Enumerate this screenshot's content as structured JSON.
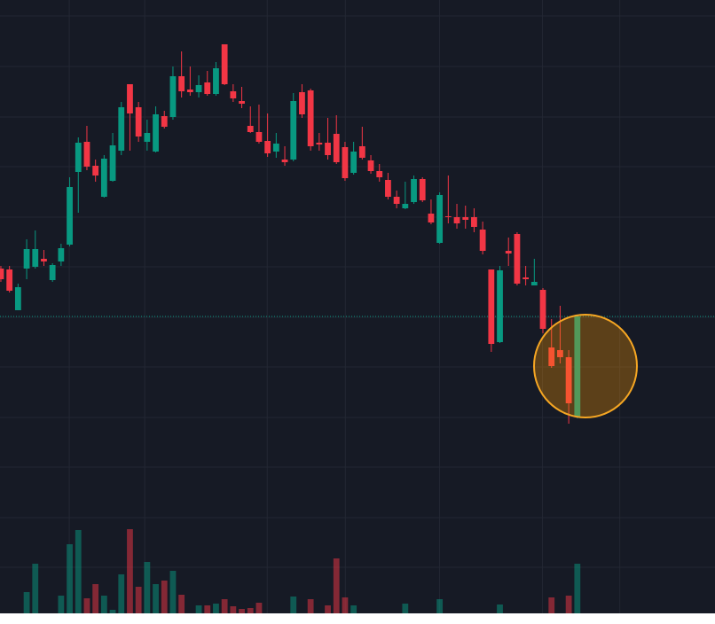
{
  "chart_data": {
    "type": "candlestick",
    "up_color": "#089981",
    "down_color": "#f23645",
    "ylim": [
      0,
      704
    ],
    "yticks": [
      686,
      629,
      572,
      516,
      459,
      403,
      346,
      290,
      233,
      177,
      120,
      64
    ],
    "xlim": [
      -0.1,
      83
    ],
    "xticks": [
      7.95,
      16.72,
      30.96,
      40.04,
      50.98,
      62.95,
      71.93
    ],
    "grid": true,
    "volume_ylim": [
      0,
      692
    ],
    "open": [
      401,
      400,
      354,
      401,
      403,
      412,
      388,
      409,
      428,
      510,
      544,
      517,
      482,
      500,
      534,
      609,
      583,
      544,
      533,
      573,
      572,
      618,
      603,
      600,
      611,
      598,
      654,
      601,
      590,
      562,
      555,
      545,
      533,
      524,
      524,
      600,
      602,
      543,
      543,
      553,
      538,
      509,
      539,
      523,
      511,
      501,
      482,
      469,
      476,
      502,
      463,
      430,
      460,
      459,
      459,
      459,
      445,
      400,
      318,
      421,
      440,
      391,
      382,
      377,
      312,
      309,
      301,
      234
    ],
    "high": [
      404,
      404,
      384,
      434,
      444,
      422,
      407,
      429,
      504,
      549,
      562,
      524,
      529,
      554,
      589,
      609,
      589,
      569,
      584,
      579,
      629,
      646,
      629,
      619,
      624,
      634,
      654,
      609,
      606,
      584,
      586,
      576,
      554,
      539,
      599,
      609,
      604,
      554,
      571,
      574,
      544,
      544,
      561,
      529,
      519,
      509,
      489,
      499,
      506,
      504,
      479,
      487,
      506,
      474,
      472,
      469,
      454,
      400,
      404,
      436,
      442,
      404,
      412,
      379,
      344,
      359,
      309,
      349
    ],
    "low": [
      386,
      374,
      354,
      389,
      401,
      404,
      386,
      404,
      426,
      464,
      512,
      499,
      481,
      499,
      529,
      534,
      544,
      534,
      532,
      559,
      569,
      594,
      596,
      594,
      596,
      596,
      608,
      589,
      582,
      554,
      542,
      527,
      526,
      517,
      522,
      571,
      534,
      534,
      524,
      519,
      500,
      507,
      524,
      508,
      499,
      479,
      469,
      468,
      474,
      476,
      451,
      429,
      452,
      446,
      446,
      442,
      417,
      307,
      317,
      404,
      382,
      382,
      382,
      328,
      289,
      294,
      226,
      232
    ],
    "close": [
      389,
      376,
      380,
      423,
      423,
      409,
      405,
      424,
      493,
      543,
      516,
      506,
      525,
      540,
      583,
      576,
      550,
      554,
      575,
      561,
      618,
      601,
      600,
      608,
      598,
      627,
      609,
      593,
      587,
      555,
      544,
      531,
      542,
      521,
      590,
      575,
      539,
      541,
      529,
      521,
      503,
      533,
      526,
      511,
      504,
      482,
      474,
      474,
      502,
      478,
      453,
      484,
      459,
      452,
      456,
      448,
      421,
      316,
      399,
      418,
      384,
      389,
      386,
      333,
      291,
      301,
      249,
      347
    ],
    "volume": [
      0,
      0,
      0,
      24,
      56,
      0,
      0,
      20,
      78,
      94,
      17,
      33,
      20,
      4,
      44,
      95,
      30,
      58,
      33,
      37,
      48,
      21,
      0,
      9,
      9,
      11,
      16,
      8,
      5,
      6,
      12,
      0,
      0,
      0,
      19,
      0,
      16,
      0,
      9,
      62,
      18,
      9,
      0,
      0,
      0,
      0,
      0,
      11,
      0,
      0,
      0,
      16,
      0,
      0,
      0,
      0,
      0,
      0,
      10,
      0,
      0,
      0,
      0,
      0,
      18,
      0,
      20,
      56
    ]
  }
}
